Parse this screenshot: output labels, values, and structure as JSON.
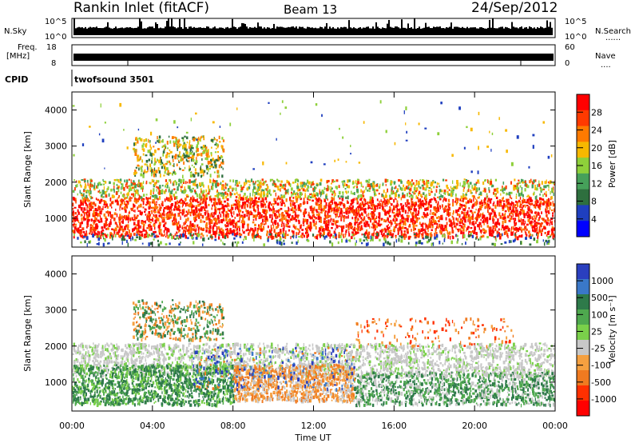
{
  "header": {
    "station": "Rankin Inlet (fitACF)",
    "beam": "Beam 13",
    "date": "24/Sep/2012"
  },
  "status_panels": {
    "nsky": {
      "label": "N.Sky",
      "left_ticks": [
        "10^5",
        "10^0"
      ],
      "right_label": "N.Search",
      "right_ticks": [
        "10^5",
        "10^0"
      ],
      "marker": "......"
    },
    "freq": {
      "label_line1": "Freq.",
      "label_line2": "[MHz]",
      "left_ticks": [
        "18",
        "8"
      ],
      "right_label": "Nave",
      "right_ticks": [
        "60",
        "0"
      ],
      "marker": "...."
    },
    "cpid": {
      "label": "CPID",
      "value": "twofsound 3501"
    }
  },
  "chart_data": [
    {
      "type": "heatmap",
      "quantity": "power",
      "ylabel": "Slant Range [km]",
      "ylim": [
        200,
        4500
      ],
      "yticks": [
        1000,
        2000,
        3000,
        4000
      ],
      "colorbar": {
        "label": "Power [dB]",
        "ticks": [
          "28",
          "24",
          "20",
          "16",
          "12",
          "8",
          "4"
        ],
        "colors": [
          "#ff0000",
          "#ff3a00",
          "#ff7a00",
          "#f7b800",
          "#8ed03a",
          "#46a05a",
          "#2e6f3e",
          "#1f3fbf",
          "#0000ff"
        ]
      }
    },
    {
      "type": "heatmap",
      "quantity": "velocity",
      "ylabel": "Slant Range [km]",
      "ylim": [
        200,
        4500
      ],
      "yticks": [
        1000,
        2000,
        3000,
        4000
      ],
      "xlabel": "Time UT",
      "xticks": [
        "00:00",
        "04:00",
        "08:00",
        "12:00",
        "16:00",
        "20:00",
        "00:00"
      ],
      "colorbar": {
        "label": "Velocity [m s⁻¹]",
        "ticks": [
          "1000",
          "500",
          "100",
          "25",
          "-25",
          "-100",
          "-500",
          "-1000"
        ],
        "colors": [
          "#2a3fbf",
          "#3a78c8",
          "#2e7a4a",
          "#4ea84e",
          "#7ad04a",
          "#c8c8c8",
          "#f5a040",
          "#f07a20",
          "#ff3000",
          "#ff0000"
        ]
      }
    }
  ]
}
